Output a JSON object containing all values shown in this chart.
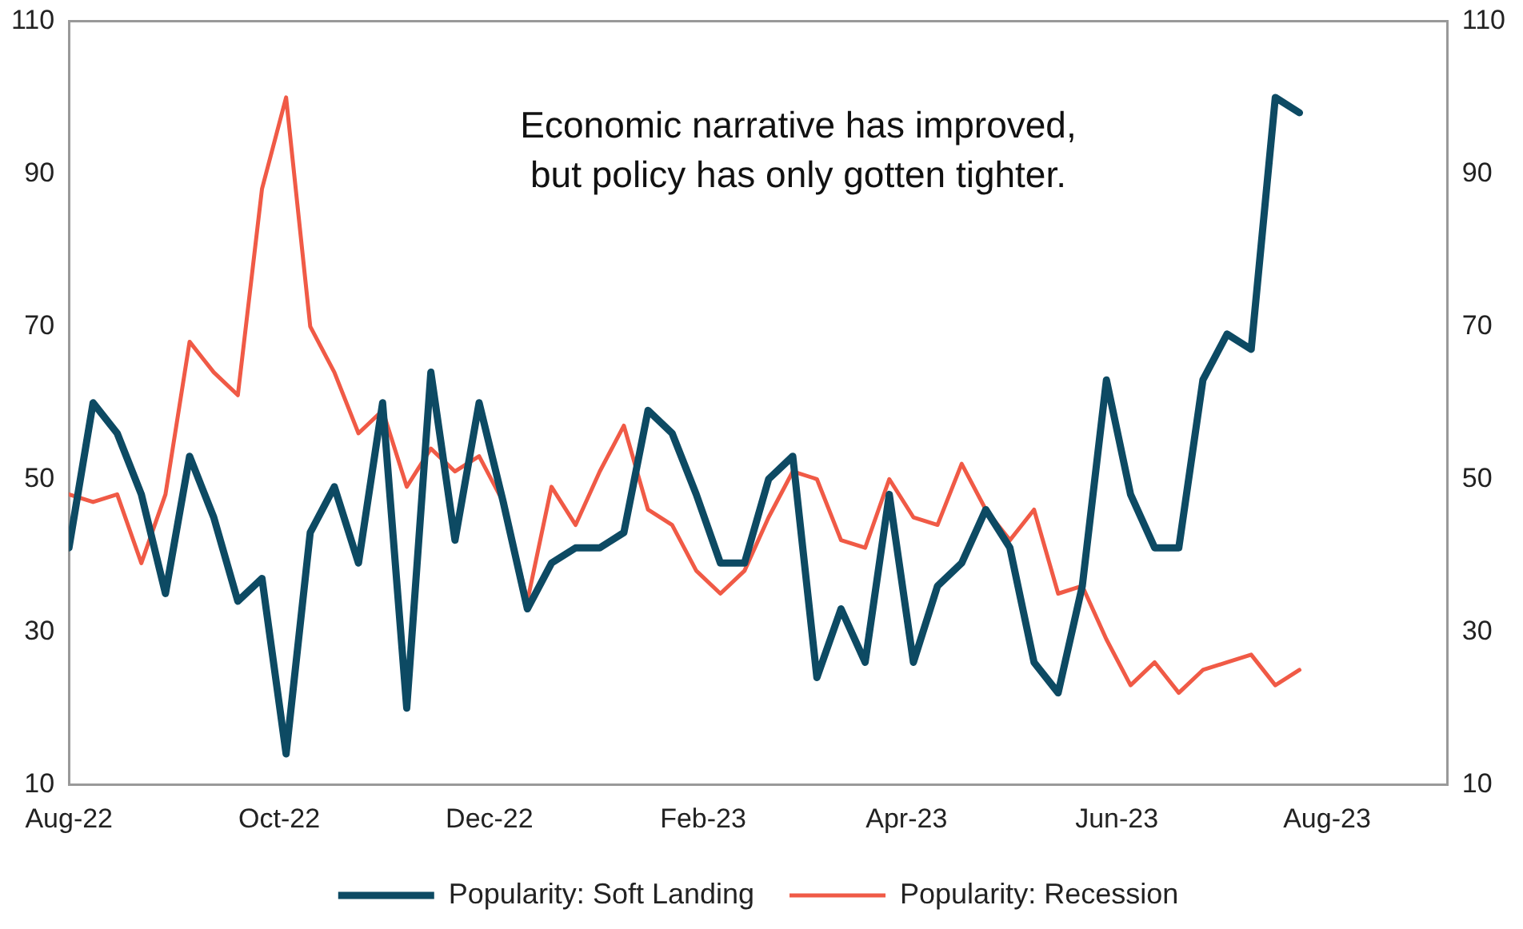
{
  "chart_data": {
    "type": "line",
    "annotations": [
      "Economic narrative has improved,\nbut policy has only gotten tighter."
    ],
    "x": [
      "2022-08-01",
      "2022-08-08",
      "2022-08-15",
      "2022-08-22",
      "2022-08-29",
      "2022-09-05",
      "2022-09-12",
      "2022-09-19",
      "2022-09-26",
      "2022-10-03",
      "2022-10-10",
      "2022-10-17",
      "2022-10-24",
      "2022-10-31",
      "2022-11-07",
      "2022-11-14",
      "2022-11-21",
      "2022-11-28",
      "2022-12-05",
      "2022-12-12",
      "2022-12-19",
      "2022-12-26",
      "2023-01-02",
      "2023-01-09",
      "2023-01-16",
      "2023-01-23",
      "2023-01-30",
      "2023-02-06",
      "2023-02-13",
      "2023-02-20",
      "2023-02-27",
      "2023-03-06",
      "2023-03-13",
      "2023-03-20",
      "2023-03-27",
      "2023-04-03",
      "2023-04-10",
      "2023-04-17",
      "2023-04-24",
      "2023-05-01",
      "2023-05-08",
      "2023-05-15",
      "2023-05-22",
      "2023-05-29",
      "2023-06-05",
      "2023-06-12",
      "2023-06-19",
      "2023-06-26",
      "2023-07-03",
      "2023-07-10",
      "2023-07-17",
      "2023-07-24"
    ],
    "series": [
      {
        "name": "Popularity: Soft Landing",
        "color": "#0d4a63",
        "values": [
          41,
          60,
          56,
          48,
          35,
          53,
          45,
          34,
          37,
          14,
          43,
          49,
          39,
          60,
          20,
          64,
          42,
          60,
          47,
          33,
          39,
          41,
          41,
          43,
          59,
          56,
          48,
          39,
          39,
          50,
          53,
          24,
          33,
          26,
          48,
          26,
          36,
          39,
          46,
          41,
          26,
          22,
          36,
          63,
          48,
          41,
          41,
          63,
          69,
          67,
          100,
          98
        ]
      },
      {
        "name": "Popularity: Recession",
        "color": "#f05a46",
        "values": [
          48,
          47,
          48,
          39,
          48,
          68,
          64,
          61,
          88,
          100,
          70,
          64,
          56,
          59,
          49,
          54,
          51,
          53,
          47,
          34,
          49,
          44,
          51,
          57,
          46,
          44,
          38,
          35,
          38,
          45,
          51,
          50,
          42,
          41,
          50,
          45,
          44,
          52,
          46,
          42,
          46,
          35,
          36,
          29,
          23,
          26,
          22,
          25,
          26,
          27,
          23,
          25
        ]
      }
    ],
    "xlim": [
      "2022-08-01",
      "2023-09-05"
    ],
    "xticks": [
      {
        "value": "2022-08-01",
        "label": "Aug-22"
      },
      {
        "value": "2022-10-01",
        "label": "Oct-22"
      },
      {
        "value": "2022-12-01",
        "label": "Dec-22"
      },
      {
        "value": "2023-02-01",
        "label": "Feb-23"
      },
      {
        "value": "2023-04-01",
        "label": "Apr-23"
      },
      {
        "value": "2023-06-01",
        "label": "Jun-23"
      },
      {
        "value": "2023-08-01",
        "label": "Aug-23"
      }
    ],
    "ylim": [
      10,
      110
    ],
    "yticks": [
      10,
      30,
      50,
      70,
      90,
      110
    ],
    "y2lim": [
      10,
      110
    ],
    "y2ticks": [
      10,
      30,
      50,
      70,
      90,
      110
    ],
    "grid": false,
    "legend": "bottom",
    "marker": "none",
    "line_style": "solid"
  }
}
